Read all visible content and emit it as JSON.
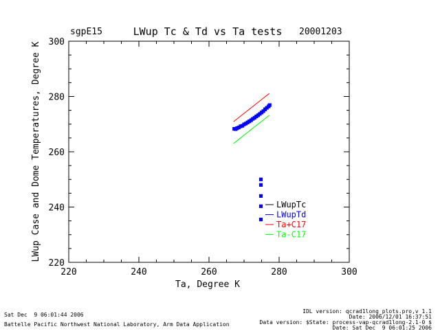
{
  "header": {
    "site": "sgpE15",
    "title": "LWup Tc & Td vs Ta tests",
    "date": "20001203"
  },
  "chart_data": {
    "type": "scatter",
    "xlabel": "Ta, Degree K",
    "ylabel": "LWup Case and Dome Temperatures, Degree K",
    "xlim": [
      220,
      300
    ],
    "ylim": [
      220,
      300
    ],
    "x_ticks": [
      "220",
      "240",
      "260",
      "280",
      "300"
    ],
    "y_ticks": [
      "220",
      "240",
      "260",
      "280",
      "300"
    ],
    "legend_position": "lower-right",
    "series": [
      {
        "name": "LWupTc",
        "color": "#000000",
        "kind": "points",
        "points": [
          [
            267.2,
            268.4
          ],
          [
            268.0,
            268.6
          ],
          [
            269.0,
            269.3
          ],
          [
            270.0,
            270.0
          ],
          [
            271.0,
            270.7
          ],
          [
            272.0,
            271.5
          ],
          [
            273.0,
            272.4
          ],
          [
            274.0,
            273.3
          ],
          [
            275.0,
            274.3
          ],
          [
            276.0,
            275.5
          ],
          [
            277.0,
            276.5
          ]
        ]
      },
      {
        "name": "LWupTd",
        "color": "#0000ff",
        "kind": "points",
        "points": [
          [
            267.2,
            268.3
          ],
          [
            267.6,
            268.2
          ],
          [
            268.0,
            268.5
          ],
          [
            268.5,
            268.8
          ],
          [
            269.0,
            269.2
          ],
          [
            269.5,
            269.4
          ],
          [
            270.0,
            269.9
          ],
          [
            270.5,
            270.2
          ],
          [
            271.0,
            270.6
          ],
          [
            271.5,
            271.0
          ],
          [
            272.0,
            271.4
          ],
          [
            272.5,
            271.9
          ],
          [
            273.0,
            272.3
          ],
          [
            273.5,
            272.8
          ],
          [
            274.0,
            273.2
          ],
          [
            274.5,
            273.7
          ],
          [
            275.0,
            274.2
          ],
          [
            275.5,
            274.7
          ],
          [
            276.0,
            275.3
          ],
          [
            276.5,
            275.9
          ],
          [
            277.0,
            276.4
          ],
          [
            277.3,
            276.9
          ],
          [
            274.8,
            250.0
          ],
          [
            274.8,
            248.0
          ],
          [
            274.8,
            244.0
          ],
          [
            274.8,
            240.3
          ],
          [
            274.8,
            235.5
          ]
        ]
      },
      {
        "name": "Ta+C17",
        "color": "#ff0000",
        "kind": "line",
        "points": [
          [
            267.0,
            270.9
          ],
          [
            277.2,
            281.1
          ]
        ]
      },
      {
        "name": "Ta-C17",
        "color": "#00ff00",
        "kind": "line",
        "points": [
          [
            267.0,
            263.0
          ],
          [
            277.2,
            273.2
          ]
        ]
      }
    ]
  },
  "footer": {
    "left_line1": "Sat Dec  9 06:01:44 2006",
    "left_line2": "Battelle Pacific Northwest National Laboratory, Arm Data Application",
    "right_line1": "IDL version: qcrad1long_plots.pro,v 1.1",
    "right_line2": "Date: 2006/12/01 16:37:51",
    "right_line3": "Data version: $State: process-vap-qcrad1long-2.1-0 $",
    "right_line4": "Date: Sat Dec  9 06:01:25 2006"
  }
}
